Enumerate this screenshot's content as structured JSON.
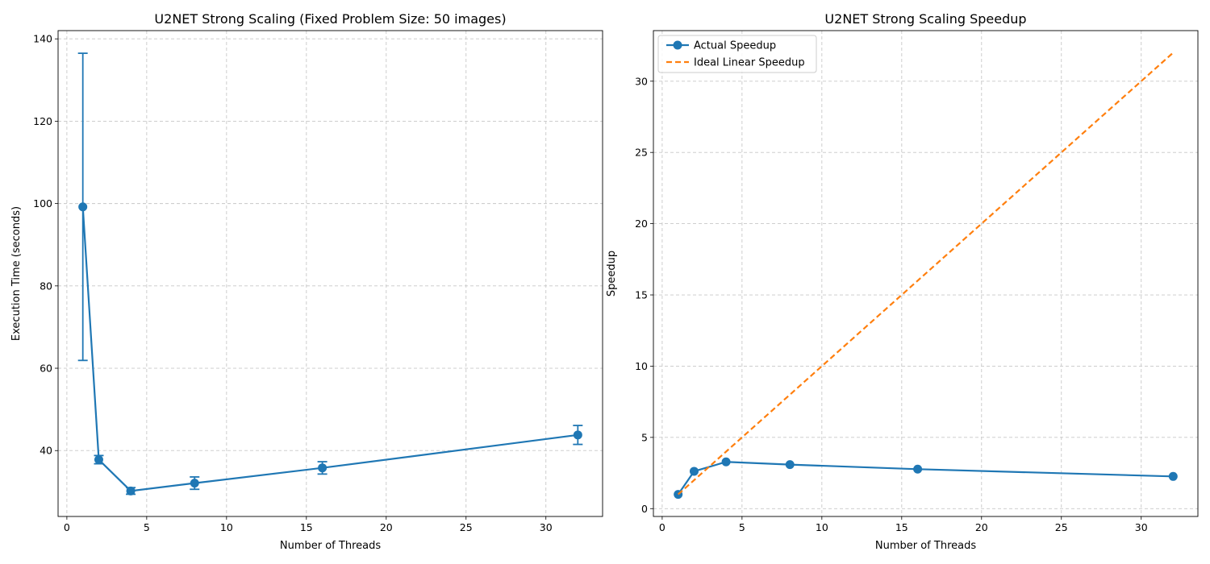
{
  "chart_data": [
    {
      "type": "line",
      "title": "U2NET Strong Scaling (Fixed Problem Size: 50 images)",
      "xlabel": "Number of Threads",
      "ylabel": "Execution Time (seconds)",
      "xlim": [
        -0.55,
        33.55
      ],
      "ylim": [
        24,
        142
      ],
      "xticks": [
        0,
        5,
        10,
        15,
        20,
        25,
        30
      ],
      "yticks": [
        40,
        60,
        80,
        100,
        120,
        140
      ],
      "grid": true,
      "color": "#1f77b4",
      "series": [
        {
          "x": [
            1,
            2,
            4,
            8,
            16,
            32
          ],
          "y": [
            99.2,
            37.8,
            30.2,
            32.1,
            35.8,
            43.8
          ],
          "yerr": [
            37.3,
            1.0,
            0.8,
            1.5,
            1.5,
            2.3
          ]
        }
      ]
    },
    {
      "type": "line",
      "title": "U2NET Strong Scaling Speedup",
      "xlabel": "Number of Threads",
      "ylabel": "Speedup",
      "xlim": [
        -0.55,
        33.55
      ],
      "ylim": [
        -0.55,
        33.55
      ],
      "xticks": [
        0,
        5,
        10,
        15,
        20,
        25,
        30
      ],
      "yticks": [
        0,
        5,
        10,
        15,
        20,
        25,
        30
      ],
      "grid": true,
      "legend": "top-left",
      "series": [
        {
          "name": "Actual Speedup",
          "x": [
            1,
            2,
            4,
            8,
            16,
            32
          ],
          "y": [
            1.0,
            2.62,
            3.28,
            3.09,
            2.77,
            2.26
          ],
          "color": "#1f77b4",
          "style": "solid-markers"
        },
        {
          "name": "Ideal Linear Speedup",
          "x": [
            1,
            32
          ],
          "y": [
            1,
            32
          ],
          "color": "#ff7f0e",
          "style": "dashed"
        }
      ]
    }
  ]
}
